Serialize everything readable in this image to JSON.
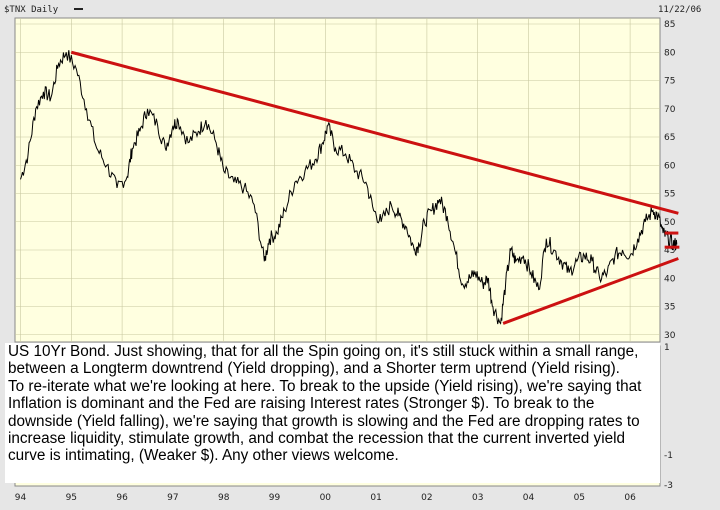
{
  "header": {
    "symbol_label": "$TNX Daily",
    "date": "11/22/06"
  },
  "chart_data": {
    "type": "line",
    "title": "$TNX Daily",
    "date": "11/22/06",
    "x_tick_labels": [
      "94",
      "95",
      "96",
      "97",
      "98",
      "99",
      "00",
      "01",
      "02",
      "03",
      "04",
      "05",
      "06"
    ],
    "y_tick_labels": [
      "85",
      "80",
      "75",
      "70",
      "65",
      "60",
      "55",
      "50",
      "45",
      "40",
      "35",
      "30"
    ],
    "ylim": [
      30,
      85
    ],
    "xlim": [
      1994.0,
      2006.95
    ],
    "lower_panel_tick_labels": [
      "1",
      "-1",
      "-3"
    ],
    "grid": true,
    "series": [
      {
        "values": [
          [
            1994.0,
            57.5
          ],
          [
            1994.15,
            62
          ],
          [
            1994.3,
            70
          ],
          [
            1994.45,
            73
          ],
          [
            1994.6,
            72
          ],
          [
            1994.75,
            78
          ],
          [
            1994.9,
            80
          ],
          [
            1995.1,
            77
          ],
          [
            1995.3,
            70
          ],
          [
            1995.5,
            63
          ],
          [
            1995.7,
            60
          ],
          [
            1995.9,
            56
          ],
          [
            1996.1,
            58
          ],
          [
            1996.2,
            63
          ],
          [
            1996.35,
            66
          ],
          [
            1996.5,
            70
          ],
          [
            1996.7,
            67
          ],
          [
            1996.85,
            63
          ],
          [
            1997.0,
            67
          ],
          [
            1997.1,
            68
          ],
          [
            1997.3,
            64
          ],
          [
            1997.5,
            66
          ],
          [
            1997.65,
            68
          ],
          [
            1997.85,
            64
          ],
          [
            1998.0,
            59
          ],
          [
            1998.2,
            57
          ],
          [
            1998.4,
            56
          ],
          [
            1998.6,
            53
          ],
          [
            1998.8,
            43
          ],
          [
            1998.9,
            47
          ],
          [
            1999.05,
            48
          ],
          [
            1999.2,
            52
          ],
          [
            1999.4,
            57
          ],
          [
            1999.6,
            59
          ],
          [
            1999.8,
            61
          ],
          [
            1999.95,
            64
          ],
          [
            2000.05,
            67
          ],
          [
            2000.2,
            63
          ],
          [
            2000.4,
            62
          ],
          [
            2000.6,
            59
          ],
          [
            2000.8,
            57
          ],
          [
            2000.95,
            52
          ],
          [
            2001.1,
            50
          ],
          [
            2001.3,
            53
          ],
          [
            2001.45,
            51
          ],
          [
            2001.6,
            49
          ],
          [
            2001.75,
            45
          ],
          [
            2001.85,
            46
          ],
          [
            2001.95,
            50
          ],
          [
            2002.1,
            52
          ],
          [
            2002.25,
            54
          ],
          [
            2002.4,
            51
          ],
          [
            2002.55,
            45
          ],
          [
            2002.7,
            39
          ],
          [
            2002.85,
            40
          ],
          [
            2002.95,
            41
          ],
          [
            2003.1,
            39
          ],
          [
            2003.2,
            40
          ],
          [
            2003.3,
            35
          ],
          [
            2003.45,
            32
          ],
          [
            2003.55,
            39
          ],
          [
            2003.65,
            45
          ],
          [
            2003.75,
            43
          ],
          [
            2003.9,
            44
          ],
          [
            2004.05,
            41
          ],
          [
            2004.2,
            38
          ],
          [
            2004.35,
            47
          ],
          [
            2004.5,
            45
          ],
          [
            2004.65,
            43
          ],
          [
            2004.8,
            41
          ],
          [
            2004.95,
            43
          ],
          [
            2005.1,
            44
          ],
          [
            2005.25,
            43
          ],
          [
            2005.4,
            40
          ],
          [
            2005.55,
            41
          ],
          [
            2005.7,
            44
          ],
          [
            2005.85,
            45
          ],
          [
            2006.0,
            44
          ],
          [
            2006.15,
            47
          ],
          [
            2006.3,
            50
          ],
          [
            2006.45,
            52
          ],
          [
            2006.55,
            51
          ],
          [
            2006.65,
            48
          ],
          [
            2006.75,
            47
          ],
          [
            2006.85,
            46
          ],
          [
            2006.92,
            46
          ]
        ]
      }
    ],
    "annotations": {
      "longterm_downtrend": [
        [
          1995.0,
          80
        ],
        [
          2006.95,
          51.5
        ]
      ],
      "shorter_term_uptrend": [
        [
          2003.5,
          32
        ],
        [
          2006.95,
          43.5
        ]
      ],
      "range_upper": 48,
      "range_lower": 45.5
    }
  },
  "annotation_text": {
    "paragraph1": "US 10Yr Bond. Just showing, that for all the Spin going on, it's still stuck within a small range, between a Longterm downtrend (Yield dropping), and a Shorter term uptrend (Yield rising).",
    "paragraph2": "To re-iterate what we're looking at here. To break to the upside (Yield rising), we're saying that Inflation is dominant and the Fed are raising Interest rates (Stronger $). To break to the downside (Yield falling), we're saying that growth is slowing and the Fed are dropping rates to increase liquidity, stimulate growth, and combat the recession that the current inverted yield curve is intimating, (Weaker $). Any other views welcome."
  },
  "colors": {
    "plot_background": "#ffffe0",
    "price_line": "#000000",
    "trendline": "#cc1111",
    "page_background": "#e6e6e6"
  }
}
